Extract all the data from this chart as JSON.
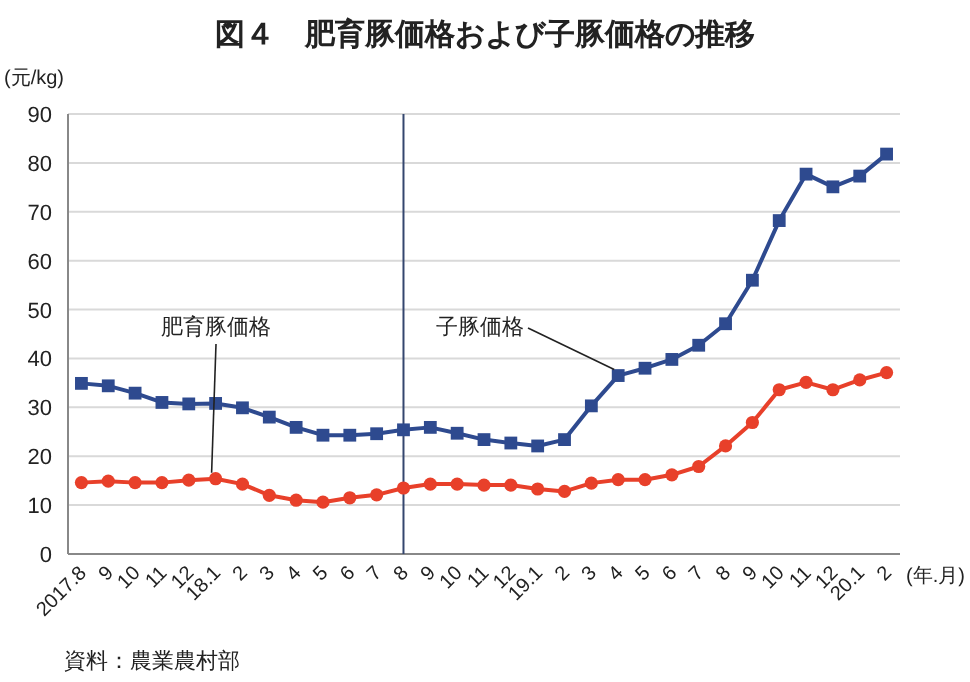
{
  "chart_data": {
    "type": "line",
    "title": "図４　肥育豚価格および子豚価格の推移",
    "ylabel": "(元/kg)",
    "xlabel": "(年.月)",
    "categories": [
      "2017.8",
      "9",
      "10",
      "11",
      "12",
      "18.1",
      "2",
      "3",
      "4",
      "5",
      "6",
      "7",
      "8",
      "9",
      "10",
      "11",
      "12",
      "19.1",
      "2",
      "3",
      "4",
      "5",
      "6",
      "7",
      "8",
      "9",
      "10",
      "11",
      "12",
      "20.1",
      "2"
    ],
    "series": [
      {
        "name": "子豚価格",
        "color": "#2e4a8f",
        "marker": "square",
        "values": [
          34.9,
          34.4,
          32.9,
          31,
          30.7,
          30.8,
          29.9,
          28,
          25.9,
          24.3,
          24.3,
          24.6,
          25.4,
          25.9,
          24.7,
          23.4,
          22.7,
          22.1,
          23.4,
          30.3,
          36.5,
          38,
          39.8,
          42.7,
          47.1,
          56,
          68.2,
          77.7,
          75.1,
          77.3,
          81.8
        ]
      },
      {
        "name": "肥育豚価格",
        "color": "#e8402a",
        "marker": "circle",
        "values": [
          14.6,
          14.9,
          14.6,
          14.6,
          15.1,
          15.4,
          14.3,
          12,
          11,
          10.6,
          11.5,
          12.1,
          13.5,
          14.3,
          14.3,
          14.1,
          14.1,
          13.3,
          12.8,
          14.5,
          15.2,
          15.2,
          16.2,
          17.9,
          22.1,
          26.9,
          33.6,
          35.1,
          33.6,
          35.6,
          37.1
        ]
      }
    ],
    "ylim": [
      0,
      90
    ],
    "yticks": [
      0,
      10,
      20,
      30,
      40,
      50,
      60,
      70,
      80,
      90
    ],
    "grid": "y",
    "ref_lines": [
      {
        "axis": "x",
        "value": "8",
        "color": "#34466e"
      }
    ],
    "annotations": [
      "資料：農業農村部"
    ]
  }
}
